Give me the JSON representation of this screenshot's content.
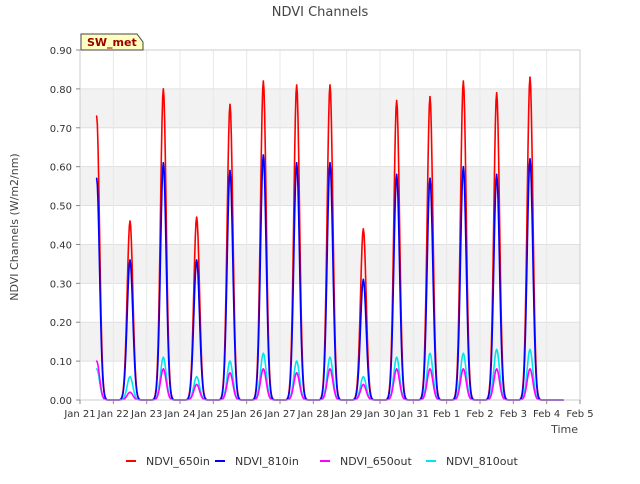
{
  "chart_data": {
    "type": "line",
    "title": "NDVI Channels",
    "xlabel": "Time",
    "ylabel": "NDVI Channels (W/m2/nm)",
    "ylim": [
      0,
      0.9
    ],
    "xlim": [
      0,
      15
    ],
    "yticks": [
      0.0,
      0.1,
      0.2,
      0.3,
      0.4,
      0.5,
      0.6,
      0.7,
      0.8,
      0.9
    ],
    "ytick_labels": [
      "0.00",
      "0.10",
      "0.20",
      "0.30",
      "0.40",
      "0.50",
      "0.60",
      "0.70",
      "0.80",
      "0.90"
    ],
    "xticks": [
      0,
      1,
      2,
      3,
      4,
      5,
      6,
      7,
      8,
      9,
      10,
      11,
      12,
      13,
      14,
      15
    ],
    "xtick_labels": [
      "Jan 21",
      "Jan 22",
      "Jan 23",
      "Jan 24",
      "Jan 25",
      "Jan 26",
      "Jan 27",
      "Jan 28",
      "Jan 29",
      "Jan 30",
      "Jan 31",
      "Feb 1",
      "Feb 2",
      "Feb 3",
      "Feb 4",
      "Feb 5"
    ],
    "grid_bands": true,
    "annotation": "SW_met",
    "x_note": "x values are days since Jan 21 00:00; each series is the daily peak value near solar noon",
    "series": [
      {
        "name": "NDVI_650in",
        "color": "#ff0000",
        "x": [
          0.5,
          1.5,
          2.5,
          3.5,
          4.5,
          5.5,
          6.5,
          7.5,
          8.5,
          9.5,
          10.5,
          11.5,
          12.5,
          13.5,
          14.5
        ],
        "values": [
          0.73,
          0.46,
          0.8,
          0.47,
          0.76,
          0.82,
          0.81,
          0.81,
          0.44,
          0.77,
          0.78,
          0.82,
          0.79,
          0.83,
          0.0
        ]
      },
      {
        "name": "NDVI_810in",
        "color": "#0000ff",
        "x": [
          0.5,
          1.5,
          2.5,
          3.5,
          4.5,
          5.5,
          6.5,
          7.5,
          8.5,
          9.5,
          10.5,
          11.5,
          12.5,
          13.5,
          14.5
        ],
        "values": [
          0.57,
          0.36,
          0.61,
          0.36,
          0.59,
          0.63,
          0.61,
          0.61,
          0.31,
          0.58,
          0.57,
          0.6,
          0.58,
          0.62,
          0.0
        ]
      },
      {
        "name": "NDVI_650out",
        "color": "#ff00ff",
        "x": [
          0.5,
          1.5,
          2.5,
          3.5,
          4.5,
          5.5,
          6.5,
          7.5,
          8.5,
          9.5,
          10.5,
          11.5,
          12.5,
          13.5,
          14.5
        ],
        "values": [
          0.1,
          0.02,
          0.08,
          0.04,
          0.07,
          0.08,
          0.07,
          0.08,
          0.04,
          0.08,
          0.08,
          0.08,
          0.08,
          0.08,
          0.0
        ]
      },
      {
        "name": "NDVI_810out",
        "color": "#00e5ee",
        "x": [
          0.5,
          1.5,
          2.5,
          3.5,
          4.5,
          5.5,
          6.5,
          7.5,
          8.5,
          9.5,
          10.5,
          11.5,
          12.5,
          13.5,
          14.5
        ],
        "values": [
          0.08,
          0.06,
          0.11,
          0.06,
          0.1,
          0.12,
          0.1,
          0.11,
          0.06,
          0.11,
          0.12,
          0.12,
          0.13,
          0.13,
          0.0
        ]
      }
    ]
  }
}
